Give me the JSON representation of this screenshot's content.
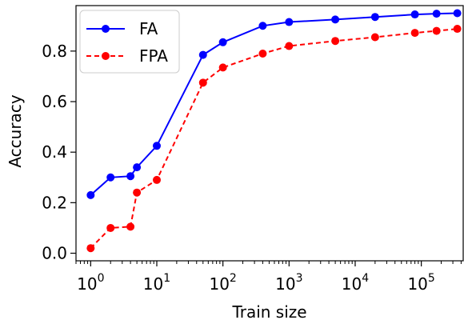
{
  "chart_data": {
    "type": "line",
    "xlabel": "Train size",
    "ylabel": "Accuracy",
    "xscale": "log",
    "xlim": [
      0.6,
      430000
    ],
    "ylim": [
      -0.03,
      0.98
    ],
    "grid": false,
    "legend_position": "top-left",
    "yticks": [
      {
        "value": 0.0,
        "label": "0.0"
      },
      {
        "value": 0.2,
        "label": "0.2"
      },
      {
        "value": 0.4,
        "label": "0.4"
      },
      {
        "value": 0.6,
        "label": "0.6"
      },
      {
        "value": 0.8,
        "label": "0.8"
      }
    ],
    "xticks": [
      {
        "value": 1,
        "base": "10",
        "exp": "0"
      },
      {
        "value": 10,
        "base": "10",
        "exp": "1"
      },
      {
        "value": 100,
        "base": "10",
        "exp": "2"
      },
      {
        "value": 1000,
        "base": "10",
        "exp": "3"
      },
      {
        "value": 10000,
        "base": "10",
        "exp": "4"
      },
      {
        "value": 100000,
        "base": "10",
        "exp": "5"
      }
    ],
    "series": [
      {
        "name": "FA",
        "color": "#0000ff",
        "dash": "solid",
        "marker": "circle",
        "x": [
          1,
          2,
          4,
          5,
          10,
          50,
          100,
          400,
          1000,
          5000,
          20000,
          80000,
          170000,
          350000
        ],
        "y": [
          0.23,
          0.3,
          0.305,
          0.34,
          0.425,
          0.785,
          0.835,
          0.9,
          0.915,
          0.925,
          0.935,
          0.945,
          0.948,
          0.95
        ]
      },
      {
        "name": "FPA",
        "color": "#ff0000",
        "dash": "dashed",
        "marker": "circle",
        "x": [
          1,
          2,
          4,
          5,
          10,
          50,
          100,
          400,
          1000,
          5000,
          20000,
          80000,
          170000,
          350000
        ],
        "y": [
          0.02,
          0.1,
          0.105,
          0.24,
          0.29,
          0.675,
          0.735,
          0.79,
          0.82,
          0.84,
          0.855,
          0.872,
          0.88,
          0.888
        ]
      }
    ]
  }
}
